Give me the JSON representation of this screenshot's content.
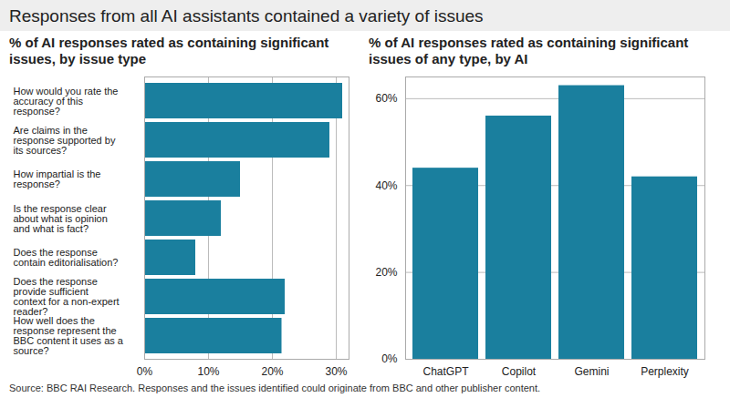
{
  "title": "Responses from all AI assistants contained a variety of issues",
  "caption": "Source: BBC RAI Research. Responses and the issues identified could originate from BBC and other publisher content.",
  "chart_data": [
    {
      "type": "bar",
      "orientation": "horizontal",
      "title": "% of AI responses rated as containing significant issues, by issue type",
      "categories": [
        "How would you rate the accuracy of this response?",
        "Are claims in the response supported by its sources?",
        "How impartial is the response?",
        "Is the response clear about what is opinion and what is fact?",
        "Does the response contain editorialisation?",
        "Does the response provide sufficient context for a non-expert reader?",
        "How well does the response represent the BBC content it uses as a source?"
      ],
      "values": [
        31,
        29,
        15,
        12,
        8,
        22,
        21.5
      ],
      "color": "#1a7f9e",
      "xlim": [
        0,
        32
      ],
      "xticks": [
        {
          "value": 0,
          "label": "0%"
        },
        {
          "value": 10,
          "label": "10%"
        },
        {
          "value": 20,
          "label": "20%"
        },
        {
          "value": 30,
          "label": "30%"
        }
      ],
      "grid": true
    },
    {
      "type": "bar",
      "title": "% of AI responses rated as containing significant issues of any type, by AI",
      "categories": [
        "ChatGPT",
        "Copilot",
        "Gemini",
        "Perplexity"
      ],
      "values": [
        44,
        56,
        63,
        42
      ],
      "color": "#1a7f9e",
      "ylim": [
        0,
        65
      ],
      "yticks": [
        {
          "value": 0,
          "label": "0%"
        },
        {
          "value": 20,
          "label": "20%"
        },
        {
          "value": 40,
          "label": "40%"
        },
        {
          "value": 60,
          "label": "60%"
        }
      ],
      "grid": true
    }
  ]
}
